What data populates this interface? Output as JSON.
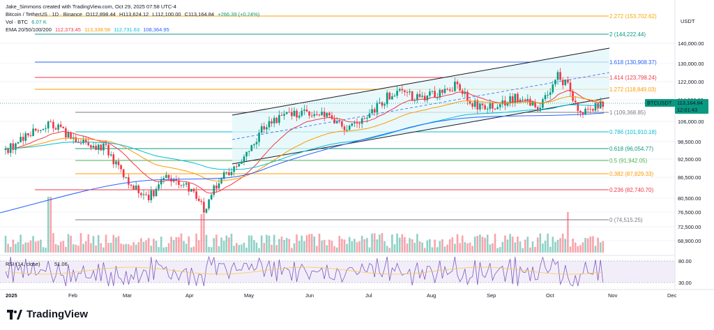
{
  "header": {
    "author": "Jake_Simmons created with TradingView.com, Oct 29, 2025 07:58 UTC-4",
    "symbol": "Bitcoin / TetherUS · 1D · Binance",
    "ohlc": {
      "o": "O112,898.44",
      "h": "H113,624.12",
      "l": "L112,100.00",
      "c": "C113,164.84",
      "chg": "+266.39 (+0.24%)"
    },
    "vol_label": "Vol · BTC",
    "vol_value": "6.07 K",
    "ema_label": "EMA 20/50/100/200",
    "ema_values": [
      "112,373.45",
      "113,338.58",
      "112,731.63",
      "108,364.95"
    ]
  },
  "price_axis": {
    "currency": "USDT",
    "ticks": [
      "140,000.00",
      "130,000.00",
      "122,000.00",
      "114,000.00",
      "106,000.00",
      "98,500.00",
      "92,500.00",
      "86,500.00",
      "80,500.00",
      "76,500.00",
      "72,500.00",
      "68,900.00"
    ],
    "last_symbol": "BTCUSDT",
    "last_price": "113,164.84",
    "countdown": "12:01:43"
  },
  "rsi": {
    "label": "RSI (14, close)",
    "value": "51.06",
    "ticks": [
      "80.00",
      "30.00"
    ]
  },
  "time_axis": [
    "2025",
    "Feb",
    "Mar",
    "Apr",
    "May",
    "Jun",
    "Jul",
    "Aug",
    "Sep",
    "Oct",
    "Nov",
    "Dec"
  ],
  "fib_levels": [
    {
      "label": "2.272 (153,702.62)",
      "color": "#f7a600"
    },
    {
      "label": "2 (144,222.44)",
      "color": "#089981"
    },
    {
      "label": "1.618 (130,908.37)",
      "color": "#2962ff"
    },
    {
      "label": "1.414 (123,798.24)",
      "color": "#f23645"
    },
    {
      "label": "1.272 (118,849.03)",
      "color": "#ff9800"
    },
    {
      "label": "1 (109,368.85)",
      "color": "#787b86"
    },
    {
      "label": "0.786 (101,910.18)",
      "color": "#00bcd4"
    },
    {
      "label": "0.618 (96,054.77)",
      "color": "#089981"
    },
    {
      "label": "0.5 (91,942.05)",
      "color": "#4caf50"
    },
    {
      "label": "0.382 (87,829.33)",
      "color": "#ff9800"
    },
    {
      "label": "0.236 (82,740.70)",
      "color": "#f23645"
    },
    {
      "label": "0 (74,515.25)",
      "color": "#787b86"
    }
  ],
  "colors": {
    "up": "#089981",
    "down": "#f23645",
    "ema20": "#f23645",
    "ema50": "#ff9800",
    "ema100": "#00bcd4",
    "ema200": "#2962ff",
    "rsi": "#7e57c2",
    "channel_fill": "#e0f7fa"
  },
  "footer": {
    "brand": "TradingView"
  }
}
